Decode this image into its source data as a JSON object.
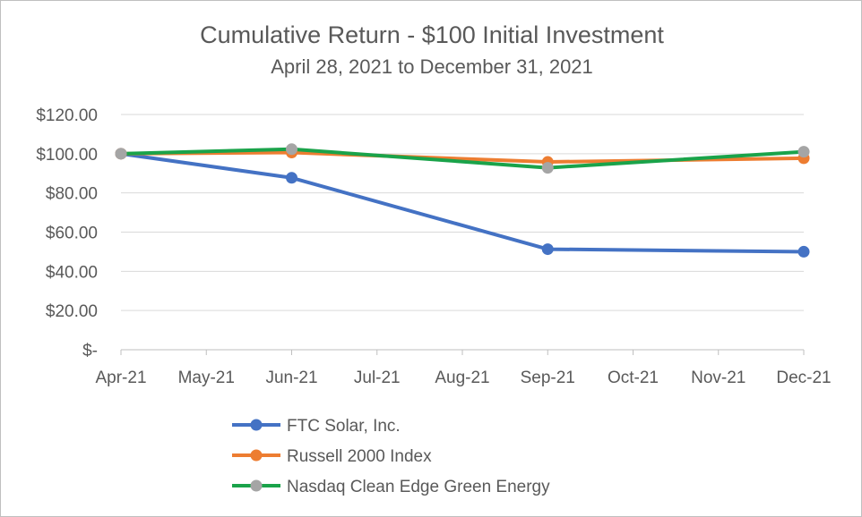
{
  "chart_data": {
    "type": "line",
    "title": "Cumulative Return - $100 Initial Investment",
    "subtitle": "April 28, 2021 to December 31, 2021",
    "xlabel": "",
    "ylabel": "",
    "categories": [
      "Apr-21",
      "May-21",
      "Jun-21",
      "Jul-21",
      "Aug-21",
      "Sep-21",
      "Oct-21",
      "Nov-21",
      "Dec-21"
    ],
    "y_ticks": [
      "$-",
      "$20.00",
      "$40.00",
      "$60.00",
      "$80.00",
      "$100.00",
      "$120.00"
    ],
    "ylim": [
      0,
      120
    ],
    "y_step": 20,
    "grid": true,
    "legend_position": "bottom",
    "series": [
      {
        "name": "FTC Solar, Inc.",
        "color": "#4472c4",
        "marker_color": "#4472c4",
        "points": [
          {
            "x": "Apr-21",
            "y": 100.0
          },
          {
            "x": "Jun-21",
            "y": 87.7
          },
          {
            "x": "Sep-21",
            "y": 51.3
          },
          {
            "x": "Dec-21",
            "y": 50.0
          }
        ]
      },
      {
        "name": "Russell 2000 Index",
        "color": "#ed7d31",
        "marker_color": "#ed7d31",
        "points": [
          {
            "x": "Apr-21",
            "y": 100.0
          },
          {
            "x": "Jun-21",
            "y": 100.6
          },
          {
            "x": "Sep-21",
            "y": 95.8
          },
          {
            "x": "Dec-21",
            "y": 97.7
          }
        ]
      },
      {
        "name": "Nasdaq Clean Edge Green Energy",
        "color": "#1aa34a",
        "marker_color": "#a5a5a5",
        "points": [
          {
            "x": "Apr-21",
            "y": 100.0
          },
          {
            "x": "Jun-21",
            "y": 102.3
          },
          {
            "x": "Sep-21",
            "y": 92.8
          },
          {
            "x": "Dec-21",
            "y": 101.0
          }
        ]
      }
    ]
  }
}
